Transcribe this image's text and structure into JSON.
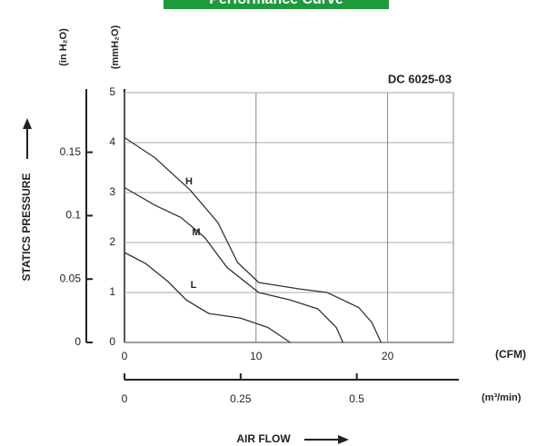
{
  "chart_data": {
    "type": "line",
    "title": "Performance Curve",
    "model": "DC 6025-03",
    "y_label": "STATICS PRESSURE",
    "y_unit": "(mmH₂O)",
    "y2_unit": "(in H₂O)",
    "x_label": "AIR FLOW",
    "x_unit": "(CFM)",
    "x2_unit": "(m³/min)",
    "xlim": [
      0,
      25
    ],
    "xticks": [
      0,
      10,
      20
    ],
    "ylim": [
      0,
      5
    ],
    "yticks": [
      0,
      1,
      2,
      3,
      4,
      5
    ],
    "x2lim": [
      0,
      0.708
    ],
    "x2ticks": [
      0,
      0.25,
      0.5
    ],
    "y2lim": [
      0,
      0.197
    ],
    "y2ticks": [
      0,
      0.05,
      0.1,
      0.15
    ],
    "grid": true,
    "series": [
      {
        "name": "H",
        "color": "#333333",
        "x": [
          0,
          2.3,
          5.0,
          7.1,
          8.6,
          10.2,
          13.3,
          15.4,
          17.8,
          18.8,
          19.5
        ],
        "values": [
          4.1,
          3.7,
          3.05,
          2.4,
          1.6,
          1.2,
          1.07,
          1.0,
          0.7,
          0.4,
          0
        ]
      },
      {
        "name": "M",
        "color": "#333333",
        "x": [
          0,
          2.3,
          4.3,
          6.1,
          7.8,
          10.2,
          12.6,
          14.7,
          16.1,
          16.6
        ],
        "values": [
          3.1,
          2.75,
          2.5,
          2.1,
          1.5,
          1.0,
          0.85,
          0.67,
          0.3,
          0
        ]
      },
      {
        "name": "L",
        "color": "#333333",
        "x": [
          0,
          1.6,
          3.3,
          4.7,
          6.4,
          8.8,
          10.9,
          12.6
        ],
        "values": [
          1.8,
          1.58,
          1.22,
          0.85,
          0.58,
          0.49,
          0.3,
          0
        ]
      }
    ]
  }
}
